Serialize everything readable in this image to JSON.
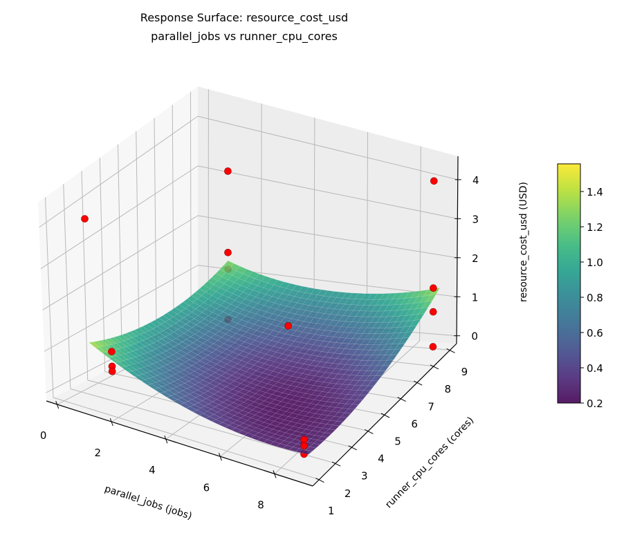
{
  "chart_data": {
    "type": "surface3d",
    "title": "Response Surface: resource_cost_usd",
    "subtitle": "parallel_jobs vs runner_cpu_cores",
    "xlabel": "parallel_jobs (jobs)",
    "ylabel": "runner_cpu_cores (cores)",
    "zlabel": "resource_cost_usd (USD)",
    "xlim": [
      -0.4,
      9.4
    ],
    "ylim": [
      0.6,
      9.4
    ],
    "zlim": [
      -0.2,
      4.6
    ],
    "x_ticks": [
      "0",
      "2",
      "4",
      "6",
      "8"
    ],
    "y_ticks": [
      "1",
      "2",
      "3",
      "4",
      "5",
      "6",
      "7",
      "8",
      "9"
    ],
    "z_ticks": [
      "0",
      "1",
      "2",
      "3",
      "4"
    ],
    "grid": true,
    "colormap": "viridis",
    "surface": {
      "x": [
        1,
        3,
        5,
        7,
        9
      ],
      "y": [
        1,
        3,
        5,
        7,
        9
      ],
      "z": [
        [
          1.4,
          1.09,
          0.97,
          1.03,
          1.28
        ],
        [
          0.83,
          0.6,
          0.55,
          0.68,
          1.0
        ],
        [
          0.46,
          0.3,
          0.32,
          0.53,
          0.92
        ],
        [
          0.29,
          0.2,
          0.29,
          0.57,
          1.03
        ],
        [
          0.32,
          0.3,
          0.46,
          0.81,
          1.35
        ]
      ]
    },
    "points": [
      {
        "x": 1.0,
        "y": 9.0,
        "z": 3.15
      },
      {
        "x": 1.0,
        "y": 9.0,
        "z": 1.45
      },
      {
        "x": 1.0,
        "y": 9.0,
        "z": 1.1
      },
      {
        "x": 1.0,
        "y": 9.0,
        "z": 0.05
      },
      {
        "x": 0.6,
        "y": 1.6,
        "z": 4.1
      },
      {
        "x": 1.5,
        "y": 1.5,
        "z": 1.15
      },
      {
        "x": 1.5,
        "y": 1.5,
        "z": 0.8
      },
      {
        "x": 1.5,
        "y": 1.5,
        "z": 0.68
      },
      {
        "x": 9.0,
        "y": 8.6,
        "z": 4.2
      },
      {
        "x": 9.0,
        "y": 8.6,
        "z": 1.5
      },
      {
        "x": 9.0,
        "y": 8.6,
        "z": 0.9
      },
      {
        "x": 9.0,
        "y": 8.6,
        "z": 0.02
      },
      {
        "x": 5.5,
        "y": 5.5,
        "z": 1.25
      },
      {
        "x": 8.6,
        "y": 1.4,
        "z": 0.45
      },
      {
        "x": 8.6,
        "y": 1.4,
        "z": 0.3
      },
      {
        "x": 8.6,
        "y": 1.4,
        "z": 0.1
      }
    ],
    "point_color": "#ff0000",
    "colorbar": {
      "range": [
        0.2,
        1.557
      ],
      "ticks": [
        "0.2",
        "0.4",
        "0.6",
        "0.8",
        "1.0",
        "1.2",
        "1.4"
      ]
    }
  }
}
